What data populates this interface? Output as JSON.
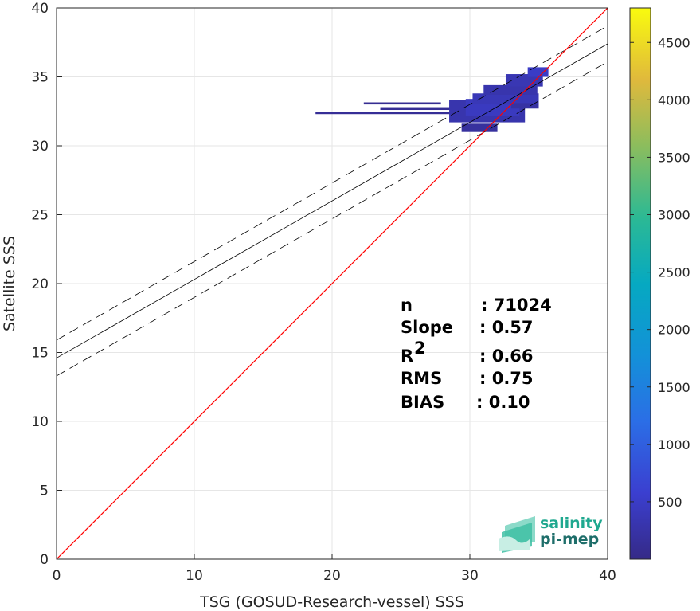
{
  "chart_data": {
    "type": "heatmap",
    "title": "",
    "xlabel": "TSG (GOSUD-Research-vessel) SSS",
    "ylabel": "Satellite SSS",
    "xlim": [
      0,
      40
    ],
    "ylim": [
      0,
      40
    ],
    "x_ticks": [
      "0",
      "10",
      "20",
      "30",
      "40"
    ],
    "y_ticks": [
      "0",
      "5",
      "10",
      "15",
      "20",
      "25",
      "30",
      "35",
      "40"
    ],
    "grid": true,
    "one_to_one_line": {
      "x": [
        0,
        40
      ],
      "y": [
        0,
        40
      ],
      "color": "#ff0000"
    },
    "regression_line": {
      "x": [
        0,
        40
      ],
      "y": [
        14.6,
        37.4
      ],
      "color": "#000000"
    },
    "regression_bounds": [
      {
        "x": [
          0,
          40
        ],
        "y": [
          15.9,
          38.7
        ],
        "style": "dashed"
      },
      {
        "x": [
          0,
          40
        ],
        "y": [
          13.3,
          36.1
        ],
        "style": "dashed"
      }
    ],
    "colorbar": {
      "colormap": "parula",
      "range": [
        0,
        4800
      ],
      "ticks": [
        "500",
        "1000",
        "1500",
        "2000",
        "2500",
        "3000",
        "3500",
        "4000",
        "4500"
      ]
    },
    "density_cells": [
      {
        "x": 18.8,
        "y": 32.3,
        "w": 12.5,
        "h": 0.15,
        "c": 120
      },
      {
        "x": 22.3,
        "y": 33.0,
        "w": 5.6,
        "h": 0.15,
        "c": 90
      },
      {
        "x": 23.5,
        "y": 32.6,
        "w": 6.2,
        "h": 0.2,
        "c": 110
      },
      {
        "x": 28.5,
        "y": 31.7,
        "w": 5.5,
        "h": 1.6,
        "c": 300
      },
      {
        "x": 29.7,
        "y": 32.2,
        "w": 3.9,
        "h": 1.2,
        "c": 450
      },
      {
        "x": 30.2,
        "y": 33.0,
        "w": 4.8,
        "h": 0.8,
        "c": 380
      },
      {
        "x": 31.0,
        "y": 33.7,
        "w": 3.9,
        "h": 0.7,
        "c": 300
      },
      {
        "x": 32.6,
        "y": 34.3,
        "w": 2.7,
        "h": 0.9,
        "c": 350
      },
      {
        "x": 34.2,
        "y": 35.0,
        "w": 1.5,
        "h": 0.7,
        "c": 500
      },
      {
        "x": 29.4,
        "y": 31.0,
        "w": 2.6,
        "h": 0.6,
        "c": 180
      },
      {
        "x": 33.0,
        "y": 32.7,
        "w": 2.0,
        "h": 0.4,
        "c": 220
      }
    ],
    "stats": [
      {
        "label": "n",
        "sup": "",
        "value": ": 71024"
      },
      {
        "label": "Slope",
        "sup": "",
        "value": ": 0.57"
      },
      {
        "label": "R",
        "sup": "2",
        "value": ": 0.66"
      },
      {
        "label": "RMS",
        "sup": "",
        "value": ": 0.75"
      },
      {
        "label": "BIAS",
        "sup": "",
        "value": ": 0.10"
      }
    ]
  },
  "logo": {
    "line1": "salinity",
    "line2": "pi-mep"
  }
}
